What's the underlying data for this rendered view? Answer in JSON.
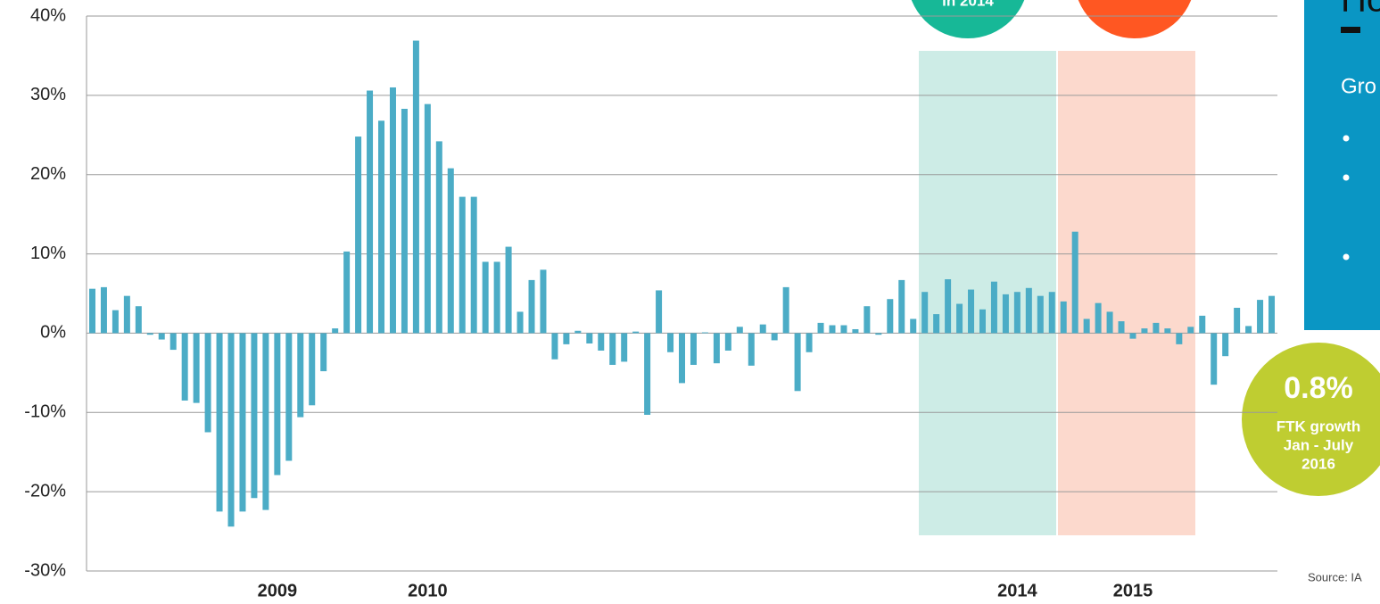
{
  "chart_data": {
    "type": "bar",
    "categories": [
      null,
      null,
      null,
      null,
      null,
      null,
      null,
      null,
      null,
      null,
      null,
      null,
      null,
      null,
      null,
      null,
      "2009",
      null,
      null,
      null,
      null,
      null,
      null,
      null,
      null,
      null,
      null,
      null,
      null,
      "2010",
      null,
      null,
      null,
      null,
      null,
      null,
      null,
      null,
      null,
      null,
      null,
      null,
      null,
      null,
      null,
      null,
      null,
      null,
      null,
      null,
      null,
      null,
      null,
      null,
      null,
      null,
      null,
      null,
      null,
      null,
      null,
      null,
      null,
      null,
      null,
      null,
      null,
      null,
      null,
      null,
      null,
      null,
      null,
      null,
      null,
      null,
      null,
      null,
      null,
      null,
      "2014",
      null,
      null,
      null,
      null,
      null,
      null,
      null,
      null,
      null,
      "2015",
      null,
      null,
      null,
      null,
      null,
      null,
      null,
      null,
      null,
      null,
      null,
      null
    ],
    "values": [
      5.6,
      5.8,
      2.9,
      4.7,
      3.4,
      -0.2,
      -0.8,
      -2.1,
      -8.5,
      -8.8,
      -12.5,
      -22.5,
      -24.4,
      -22.5,
      -20.8,
      -22.3,
      -17.9,
      -16.1,
      -10.6,
      -9.1,
      -4.8,
      0.6,
      10.3,
      24.8,
      30.6,
      26.8,
      31,
      28.3,
      36.9,
      28.9,
      24.2,
      20.8,
      17.2,
      17.2,
      9,
      9,
      10.9,
      2.7,
      6.7,
      8,
      -3.3,
      -1.4,
      0.3,
      -1.3,
      -2.2,
      -4,
      -3.6,
      0.2,
      -10.3,
      5.4,
      -2.4,
      -6.3,
      -4,
      0.1,
      -3.8,
      -2.2,
      0.8,
      -4.1,
      1.1,
      -0.9,
      5.8,
      -7.3,
      -2.4,
      1.3,
      1,
      1,
      0.5,
      3.4,
      -0.2,
      4.3,
      6.7,
      1.8,
      5.2,
      2.4,
      6.8,
      3.7,
      5.5,
      3,
      6.5,
      4.9,
      5.2,
      5.7,
      4.7,
      5.2,
      4,
      12.8,
      1.8,
      3.8,
      2.7,
      1.5,
      -0.7,
      0.6,
      1.3,
      0.6,
      -1.4,
      0.8,
      2.2,
      -6.5,
      -2.9,
      3.2,
      0.9,
      4.2,
      4.7
    ],
    "color": "#4bacc6",
    "ylim": [
      -30,
      40
    ],
    "yticks": [
      {
        "value": -30,
        "label": "-30%"
      },
      {
        "value": -20,
        "label": "-20%"
      },
      {
        "value": -10,
        "label": "-10%"
      },
      {
        "value": 0,
        "label": "0%"
      },
      {
        "value": 10,
        "label": "10%"
      },
      {
        "value": 20,
        "label": "20%"
      },
      {
        "value": 30,
        "label": "30%"
      },
      {
        "value": 40,
        "label": "40%"
      }
    ],
    "grid": true,
    "annotations": {
      "green_circle": "in 2014",
      "growth_value": "0.8%",
      "growth_line1": "FTK growth",
      "growth_line2": "Jan - July",
      "growth_line3": "2016",
      "panel_title": "Ho",
      "panel_text": "Gro",
      "source": "Source: IA"
    }
  }
}
